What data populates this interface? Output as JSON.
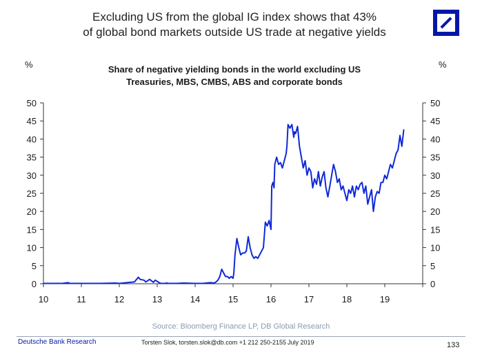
{
  "header": {
    "headline_line1": "Excluding US from the global IG index shows that 43%",
    "headline_line2": "of global bond markets outside US trade at negative yields",
    "logo_name": "deutsche-bank-logo"
  },
  "chart": {
    "unit_left": "%",
    "unit_right": "%",
    "title_line1": "Share of negative yielding bonds in the world excluding US",
    "title_line2": "Treasuries, MBS, CMBS, ABS and corporate bonds"
  },
  "chart_data": {
    "type": "line",
    "title": "Share of negative yielding bonds in the world excluding US Treasuries, MBS, CMBS, ABS and corporate bonds",
    "ylabel": "%",
    "xlim": [
      10,
      20
    ],
    "ylim": [
      0,
      50
    ],
    "x_ticks": [
      "10",
      "11",
      "12",
      "13",
      "14",
      "15",
      "16",
      "17",
      "18",
      "19"
    ],
    "y_ticks": [
      "0",
      "5",
      "10",
      "15",
      "20",
      "25",
      "30",
      "35",
      "40",
      "45",
      "50"
    ],
    "grid": false,
    "color": "#0f28d8",
    "series": [
      {
        "x": [
          10.0,
          10.5,
          10.65,
          10.7,
          11.0,
          11.5,
          11.9,
          12.0,
          12.2,
          12.4,
          12.5,
          12.55,
          12.65,
          12.7,
          12.8,
          12.9,
          12.95,
          13.05,
          13.1,
          13.2,
          13.25,
          13.3,
          13.5,
          13.7,
          14.0,
          14.2,
          14.4,
          14.5,
          14.55,
          14.6,
          14.65,
          14.7,
          14.8,
          14.85,
          14.9,
          14.95,
          15.0,
          15.02,
          15.05,
          15.1,
          15.15,
          15.2,
          15.25,
          15.3,
          15.35,
          15.4,
          15.45,
          15.5,
          15.55,
          15.6,
          15.65,
          15.7,
          15.75,
          15.8,
          15.85,
          15.9,
          15.95,
          16.0,
          16.02,
          16.05,
          16.08,
          16.1,
          16.15,
          16.2,
          16.25,
          16.3,
          16.35,
          16.4,
          16.42,
          16.45,
          16.5,
          16.55,
          16.6,
          16.62,
          16.65,
          16.7,
          16.75,
          16.8,
          16.85,
          16.9,
          16.95,
          17.0,
          17.05,
          17.1,
          17.15,
          17.2,
          17.25,
          17.3,
          17.35,
          17.4,
          17.45,
          17.5,
          17.55,
          17.6,
          17.65,
          17.7,
          17.75,
          17.8,
          17.85,
          17.9,
          17.95,
          18.0,
          18.05,
          18.1,
          18.15,
          18.2,
          18.25,
          18.3,
          18.35,
          18.4,
          18.45,
          18.5,
          18.55,
          18.6,
          18.65,
          18.7,
          18.75,
          18.8,
          18.85,
          18.9,
          18.95,
          19.0,
          19.05,
          19.1,
          19.15,
          19.2,
          19.25,
          19.3,
          19.35,
          19.4,
          19.45,
          19.5
        ],
        "y": [
          0.1,
          0.1,
          0.3,
          0.1,
          0.1,
          0.1,
          0.2,
          0.1,
          0.3,
          0.5,
          1.8,
          1.2,
          1.0,
          0.5,
          1.2,
          0.4,
          1.0,
          0.3,
          0.1,
          0.1,
          0.2,
          0.1,
          0.1,
          0.2,
          0.1,
          0.1,
          0.3,
          0.2,
          0.5,
          1.0,
          2.0,
          4.0,
          2.0,
          2.0,
          1.5,
          2.0,
          1.5,
          3.0,
          8.0,
          12.5,
          10.0,
          8.0,
          8.5,
          8.5,
          9.0,
          13.0,
          10.0,
          8.0,
          7.0,
          7.5,
          7.0,
          8.0,
          9.0,
          10.0,
          17.0,
          16.0,
          17.5,
          15.0,
          27.0,
          28.0,
          26.5,
          33.0,
          35.0,
          33.0,
          33.5,
          32.0,
          34.0,
          36.0,
          38.0,
          44.0,
          43.0,
          44.0,
          40.5,
          42.0,
          41.5,
          43.5,
          38.0,
          35.0,
          32.0,
          34.0,
          30.0,
          32.0,
          31.0,
          26.5,
          29.0,
          27.5,
          31.0,
          27.0,
          29.5,
          31.0,
          26.5,
          24.0,
          27.0,
          30.0,
          33.0,
          31.0,
          28.0,
          29.0,
          26.0,
          27.0,
          25.0,
          23.0,
          26.0,
          25.0,
          27.0,
          24.0,
          27.0,
          26.0,
          27.5,
          28.0,
          25.0,
          27.0,
          22.0,
          24.0,
          26.0,
          20.0,
          24.0,
          25.5,
          25.0,
          28.0,
          28.0,
          30.0,
          29.0,
          31.0,
          33.0,
          32.0,
          34.0,
          36.0,
          37.0,
          41.0,
          38.0,
          42.5
        ]
      }
    ]
  },
  "footer": {
    "source": "Source: Bloomberg Finance LP, DB Global Research",
    "brand": "Deutsche Bank Research",
    "author": "Torsten Slok, torsten.slok@db.com +1 212 250-2155",
    "date": "July 2019",
    "page_number": "133"
  }
}
